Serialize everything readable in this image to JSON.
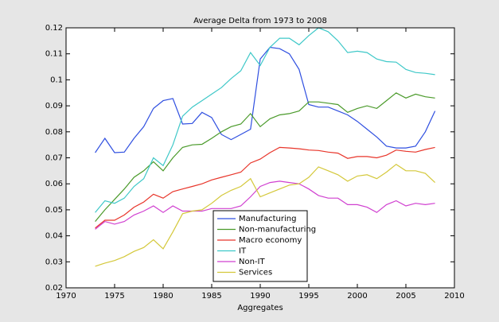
{
  "chart_data": {
    "type": "line",
    "title": "Average Delta from 1973 to 2008",
    "xlabel": "Aggregates",
    "x": [
      1973,
      1974,
      1975,
      1976,
      1977,
      1978,
      1979,
      1980,
      1981,
      1982,
      1983,
      1984,
      1985,
      1986,
      1987,
      1988,
      1989,
      1990,
      1991,
      1992,
      1993,
      1994,
      1995,
      1996,
      1997,
      1998,
      1999,
      2000,
      2001,
      2002,
      2003,
      2004,
      2005,
      2006,
      2007,
      2008
    ],
    "xlim": [
      1970,
      2010
    ],
    "xticks": [
      1970,
      1975,
      1980,
      1985,
      1990,
      1995,
      2000,
      2005,
      2010
    ],
    "ylim": [
      0.02,
      0.12
    ],
    "yticks": [
      0.02,
      0.03,
      0.04,
      0.05,
      0.06,
      0.07,
      0.08,
      0.09,
      0.1,
      0.11,
      0.12
    ],
    "legend_loc": "lower center",
    "series": [
      {
        "name": "Manufacturing",
        "color": "#2f4fe0",
        "values": [
          0.072,
          0.0775,
          0.072,
          0.0722,
          0.0775,
          0.082,
          0.089,
          0.092,
          0.0928,
          0.083,
          0.0832,
          0.0875,
          0.0855,
          0.079,
          0.077,
          0.079,
          0.081,
          0.108,
          0.1125,
          0.112,
          0.11,
          0.104,
          0.0905,
          0.0895,
          0.0895,
          0.088,
          0.0865,
          0.084,
          0.081,
          0.078,
          0.0745,
          0.0738,
          0.0738,
          0.0745,
          0.08,
          0.088
        ]
      },
      {
        "name": "Non-manufacturing",
        "color": "#4a9a2a",
        "values": [
          0.0455,
          0.05,
          0.054,
          0.058,
          0.0625,
          0.065,
          0.0685,
          0.065,
          0.07,
          0.074,
          0.075,
          0.0752,
          0.0775,
          0.08,
          0.082,
          0.083,
          0.087,
          0.082,
          0.085,
          0.0865,
          0.087,
          0.088,
          0.0915,
          0.0915,
          0.091,
          0.0905,
          0.0875,
          0.089,
          0.09,
          0.089,
          0.092,
          0.095,
          0.093,
          0.0945,
          0.0935,
          0.093
        ]
      },
      {
        "name": "Macro economy",
        "color": "#e8352a",
        "values": [
          0.043,
          0.046,
          0.046,
          0.048,
          0.051,
          0.053,
          0.056,
          0.0545,
          0.057,
          0.058,
          0.059,
          0.06,
          0.0615,
          0.0625,
          0.0635,
          0.0645,
          0.068,
          0.0695,
          0.072,
          0.074,
          0.0738,
          0.0735,
          0.073,
          0.0728,
          0.0722,
          0.0718,
          0.0698,
          0.0705,
          0.0705,
          0.07,
          0.071,
          0.073,
          0.0725,
          0.0722,
          0.0732,
          0.074
        ]
      },
      {
        "name": "IT",
        "color": "#3ec8c8",
        "values": [
          0.049,
          0.0535,
          0.0525,
          0.0545,
          0.059,
          0.062,
          0.07,
          0.067,
          0.075,
          0.086,
          0.0895,
          0.092,
          0.0945,
          0.097,
          0.1005,
          0.1035,
          0.1105,
          0.1055,
          0.1125,
          0.116,
          0.116,
          0.1135,
          0.117,
          0.12,
          0.1185,
          0.115,
          0.1105,
          0.111,
          0.1105,
          0.108,
          0.107,
          0.1068,
          0.104,
          0.1028,
          0.1025,
          0.102
        ]
      },
      {
        "name": "Non-IT",
        "color": "#d040d0",
        "values": [
          0.0425,
          0.0455,
          0.0445,
          0.0455,
          0.048,
          0.0495,
          0.0515,
          0.049,
          0.0515,
          0.0495,
          0.0495,
          0.0495,
          0.0505,
          0.0505,
          0.0505,
          0.0515,
          0.055,
          0.059,
          0.0605,
          0.061,
          0.0605,
          0.06,
          0.058,
          0.0555,
          0.0545,
          0.0545,
          0.052,
          0.052,
          0.051,
          0.049,
          0.052,
          0.0535,
          0.0515,
          0.0525,
          0.052,
          0.0525
        ]
      },
      {
        "name": "Services",
        "color": "#d4c83a",
        "values": [
          0.0283,
          0.0295,
          0.0305,
          0.032,
          0.034,
          0.0355,
          0.0385,
          0.035,
          0.0415,
          0.0485,
          0.0495,
          0.05,
          0.0525,
          0.0555,
          0.0575,
          0.059,
          0.062,
          0.055,
          0.0565,
          0.058,
          0.0595,
          0.06,
          0.0625,
          0.0665,
          0.065,
          0.0635,
          0.061,
          0.063,
          0.0635,
          0.062,
          0.0645,
          0.0675,
          0.065,
          0.065,
          0.064,
          0.0605
        ]
      }
    ]
  }
}
